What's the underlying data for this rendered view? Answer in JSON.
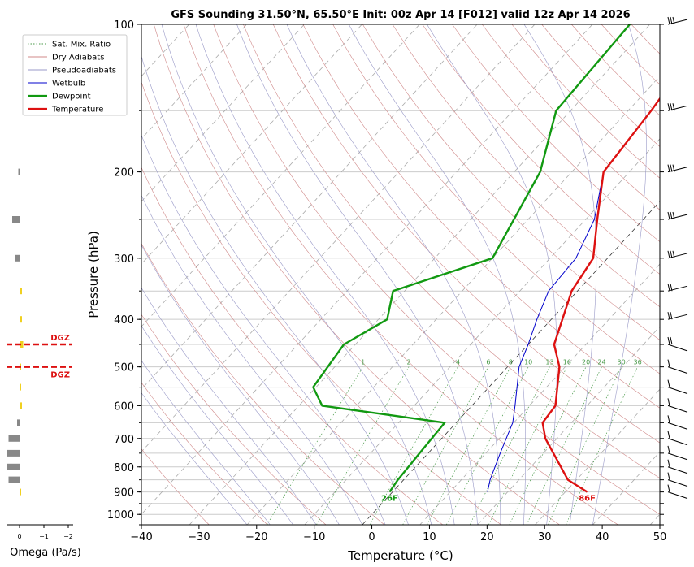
{
  "title": "GFS Sounding 31.50°N, 65.50°E Init: 00z Apr 14 [F012] valid 12z Apr 14 2026",
  "chart_data": {
    "type": "skew-t",
    "xlabel": "Temperature (°C)",
    "ylabel": "Pressure (hPa)",
    "xlim": [
      -40,
      50
    ],
    "ylim": [
      1050,
      100
    ],
    "y_scale": "log",
    "x_ticks": [
      -40,
      -30,
      -20,
      -10,
      0,
      10,
      20,
      30,
      40,
      50
    ],
    "x_tick_labels": [
      "−40",
      "−30",
      "−20",
      "−10",
      "0",
      "10",
      "20",
      "30",
      "40",
      "50"
    ],
    "y_ticks": [
      1000,
      900,
      800,
      700,
      600,
      500,
      400,
      300,
      200,
      100
    ],
    "y_tick_labels": [
      "1000",
      "900",
      "800",
      "700",
      "600",
      "500",
      "400",
      "300",
      "200",
      "100"
    ],
    "grid": true,
    "legend_position": "top-left",
    "legend": [
      {
        "label": "Sat. Mix. Ratio",
        "color": "#4a9a4a",
        "style": "dotted"
      },
      {
        "label": "Dry Adiabats",
        "color": "#d08a8a",
        "style": "solid"
      },
      {
        "label": "Pseudoadiabats",
        "color": "#9a9ac8",
        "style": "solid"
      },
      {
        "label": "Wetbulb",
        "color": "#0000cc",
        "style": "solid"
      },
      {
        "label": "Dewpoint",
        "color": "#119911",
        "style": "solid"
      },
      {
        "label": "Temperature",
        "color": "#dd1111",
        "style": "solid"
      }
    ],
    "series": [
      {
        "name": "Temperature",
        "color": "#dd1111",
        "points": [
          [
            900,
            33.8
          ],
          [
            850,
            28.5
          ],
          [
            700,
            18.0
          ],
          [
            650,
            15.0
          ],
          [
            600,
            14.5
          ],
          [
            500,
            9.0
          ],
          [
            450,
            4.5
          ],
          [
            350,
            -1.0
          ],
          [
            300,
            -2.5
          ],
          [
            250,
            -8.0
          ],
          [
            200,
            -14.5
          ],
          [
            150,
            -16.0
          ],
          [
            100,
            -19.0
          ]
        ]
      },
      {
        "name": "Dewpoint",
        "color": "#119911",
        "points": [
          [
            900,
            -0.5
          ],
          [
            850,
            -1.0
          ],
          [
            750,
            -1.5
          ],
          [
            650,
            -2.0
          ],
          [
            600,
            -26.0
          ],
          [
            550,
            -30.5
          ],
          [
            450,
            -32.0
          ],
          [
            400,
            -28.5
          ],
          [
            350,
            -32.0
          ],
          [
            300,
            -20.0
          ],
          [
            200,
            -25.5
          ],
          [
            150,
            -32.5
          ],
          [
            100,
            -33.5
          ]
        ]
      },
      {
        "name": "Wetbulb",
        "color": "#0000cc",
        "points": [
          [
            900,
            16.5
          ],
          [
            850,
            15.0
          ],
          [
            750,
            12.5
          ],
          [
            650,
            9.8
          ],
          [
            600,
            7.5
          ],
          [
            500,
            2.0
          ],
          [
            450,
            0.0
          ],
          [
            400,
            -2.5
          ],
          [
            350,
            -5.0
          ],
          [
            300,
            -5.5
          ],
          [
            250,
            -8.5
          ],
          [
            200,
            -14.5
          ],
          [
            150,
            -16.0
          ],
          [
            100,
            -19.0
          ]
        ]
      }
    ],
    "surface_labels": [
      {
        "text": "26F",
        "color": "#119911",
        "pressure": 900,
        "temp": -0.5
      },
      {
        "text": "86F",
        "color": "#dd1111",
        "pressure": 900,
        "temp": 33.8
      }
    ],
    "mixing_ratio_labels": [
      "1",
      "2",
      "4",
      "6",
      "8",
      "10",
      "13",
      "16",
      "20",
      "24",
      "30",
      "36"
    ],
    "mixing_ratio_values": [
      1,
      2,
      4,
      6,
      8,
      10,
      13,
      16,
      20,
      24,
      30,
      36
    ],
    "omega": {
      "xlabel": "Omega (Pa/s)",
      "x_tick_labels": [
        "0",
        "−1",
        "−2"
      ],
      "x_ticks": [
        0,
        -1,
        -2
      ],
      "bars": [
        {
          "pressure": 200,
          "value": 0.05,
          "color": "#888888"
        },
        {
          "pressure": 250,
          "value": 0.3,
          "color": "#888888"
        },
        {
          "pressure": 300,
          "value": 0.2,
          "color": "#888888"
        },
        {
          "pressure": 350,
          "value": -0.1,
          "color": "#f0d020"
        },
        {
          "pressure": 400,
          "value": -0.1,
          "color": "#f0d020"
        },
        {
          "pressure": 450,
          "value": -0.15,
          "color": "#f0d020"
        },
        {
          "pressure": 500,
          "value": -0.05,
          "color": "#f0d020"
        },
        {
          "pressure": 550,
          "value": -0.05,
          "color": "#f0d020"
        },
        {
          "pressure": 600,
          "value": -0.1,
          "color": "#f0d020"
        },
        {
          "pressure": 650,
          "value": 0.1,
          "color": "#888888"
        },
        {
          "pressure": 700,
          "value": 0.45,
          "color": "#888888"
        },
        {
          "pressure": 750,
          "value": 0.5,
          "color": "#888888"
        },
        {
          "pressure": 800,
          "value": 0.5,
          "color": "#888888"
        },
        {
          "pressure": 850,
          "value": 0.45,
          "color": "#888888"
        },
        {
          "pressure": 900,
          "value": -0.05,
          "color": "#f0d020"
        }
      ],
      "dgz": {
        "label": "DGZ",
        "color": "#dd1111",
        "top_pressure": 450,
        "bottom_pressure": 500
      }
    },
    "wind_barbs_pressures": [
      100,
      150,
      200,
      250,
      300,
      350,
      400,
      450,
      500,
      550,
      600,
      650,
      700,
      750,
      800,
      850,
      900
    ]
  }
}
